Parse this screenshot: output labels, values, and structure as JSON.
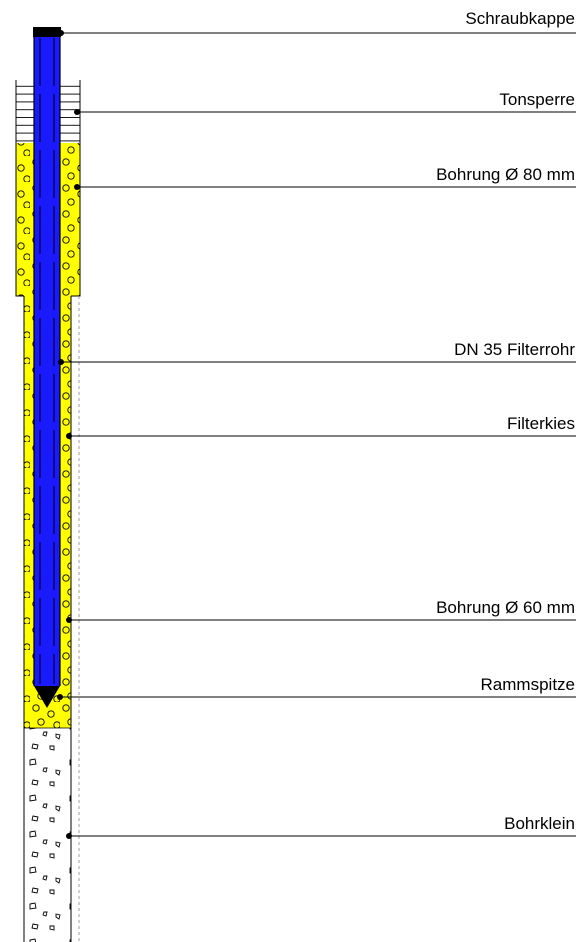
{
  "labels": {
    "cap": "Schraubkappe",
    "clay_seal": "Tonsperre",
    "bore_80": "Bohrung Ø 80 mm",
    "filter_pipe": "DN 35 Filterrohr",
    "filter_gravel": "Filterkies",
    "bore_60": "Bohrung Ø 60 mm",
    "drive_point": "Rammspitze",
    "cuttings": "Bohrklein"
  },
  "colors": {
    "pipe": "#1a1aff",
    "gravel": "#ffff00",
    "cap": "#000000",
    "background": "#ffffff"
  }
}
